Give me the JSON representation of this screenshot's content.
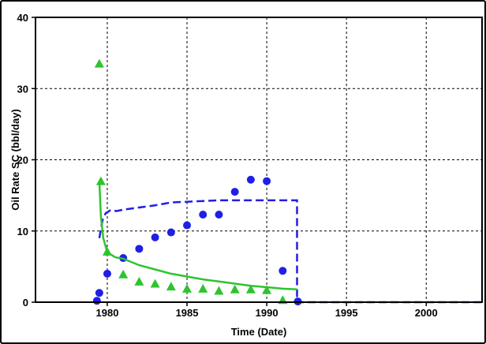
{
  "chart_data": {
    "type": "line",
    "xlabel": "Time (Date)",
    "ylabel": "Oil Rate SC (bbl/day)",
    "xlim": [
      1975.5,
      2003.5
    ],
    "ylim": [
      0,
      40
    ],
    "x_ticks": [
      1980,
      1985,
      1990,
      1995,
      2000
    ],
    "y_ticks": [
      0,
      10,
      20,
      30,
      40
    ],
    "grid": true,
    "colors": {
      "blue": "#1f1fe6",
      "green": "#2ec42e",
      "axis": "#000000"
    },
    "series": [
      {
        "style": "blue-dashed-line",
        "points": [
          [
            1979.5,
            9
          ],
          [
            1979.7,
            11.5
          ],
          [
            1979.9,
            12.5
          ],
          [
            1980.2,
            12.9
          ],
          [
            1980.6,
            12.8
          ],
          [
            1981,
            13
          ],
          [
            1982,
            13.3
          ],
          [
            1983,
            13.6
          ],
          [
            1984,
            14
          ],
          [
            1985,
            14.1
          ],
          [
            1986,
            14.2
          ],
          [
            1987,
            14.3
          ],
          [
            1988,
            14.3
          ],
          [
            1989,
            14.3
          ],
          [
            1990,
            14.3
          ],
          [
            1991,
            14.3
          ],
          [
            1991.9,
            14.3
          ],
          [
            1991.9,
            0
          ],
          [
            1995,
            0
          ],
          [
            2000,
            0
          ],
          [
            2003.5,
            0
          ]
        ]
      },
      {
        "style": "blue-circles",
        "points": [
          [
            1979.35,
            0.2
          ],
          [
            1979.5,
            1.3
          ],
          [
            1980,
            4
          ],
          [
            1981,
            6.2
          ],
          [
            1982,
            7.5
          ],
          [
            1983,
            9.1
          ],
          [
            1984,
            9.8
          ],
          [
            1985,
            10.8
          ],
          [
            1986,
            12.3
          ],
          [
            1987,
            12.3
          ],
          [
            1988,
            15.5
          ],
          [
            1989,
            17.2
          ],
          [
            1990,
            17
          ],
          [
            1991,
            4.4
          ],
          [
            1991.95,
            0.1
          ]
        ]
      },
      {
        "style": "green-solid-line",
        "points": [
          [
            1979.5,
            17
          ],
          [
            1979.6,
            12
          ],
          [
            1979.75,
            9
          ],
          [
            1980,
            7
          ],
          [
            1980.5,
            6.3
          ],
          [
            1981,
            6.1
          ],
          [
            1982,
            5.2
          ],
          [
            1983,
            4.6
          ],
          [
            1984,
            4
          ],
          [
            1985,
            3.6
          ],
          [
            1986,
            3.2
          ],
          [
            1987,
            2.9
          ],
          [
            1988,
            2.6
          ],
          [
            1989,
            2.3
          ],
          [
            1990,
            2.1
          ],
          [
            1991,
            1.9
          ],
          [
            1991.9,
            1.8
          ]
        ]
      },
      {
        "style": "green-triangles",
        "points": [
          [
            1979.5,
            33.5
          ],
          [
            1979.6,
            17
          ],
          [
            1980,
            7.1
          ],
          [
            1981,
            3.9
          ],
          [
            1982,
            2.9
          ],
          [
            1983,
            2.6
          ],
          [
            1984,
            2.2
          ],
          [
            1985,
            1.9
          ],
          [
            1986,
            1.9
          ],
          [
            1987,
            1.6
          ],
          [
            1988,
            1.8
          ],
          [
            1989,
            1.8
          ],
          [
            1990,
            1.7
          ],
          [
            1991,
            0.3
          ]
        ]
      }
    ]
  }
}
